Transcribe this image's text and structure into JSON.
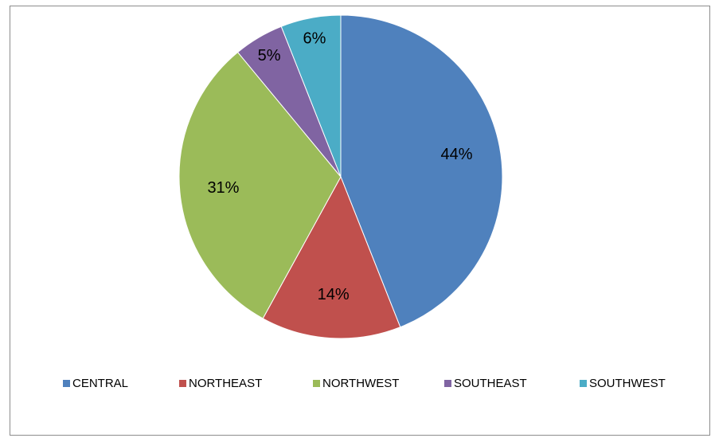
{
  "chart_data": {
    "type": "pie",
    "title": "",
    "categories": [
      "CENTRAL",
      "NORTHEAST",
      "NORTHWEST",
      "SOUTHEAST",
      "SOUTHWEST"
    ],
    "values": [
      44,
      14,
      31,
      5,
      6
    ],
    "data_labels": [
      "44%",
      "14%",
      "31%",
      "5%",
      "6%"
    ],
    "colors": [
      "#4F81BD",
      "#C0504D",
      "#9BBB59",
      "#8064A2",
      "#4BACC6"
    ],
    "start_angle": "12 o'clock",
    "direction": "clockwise",
    "legend_position": "bottom"
  }
}
